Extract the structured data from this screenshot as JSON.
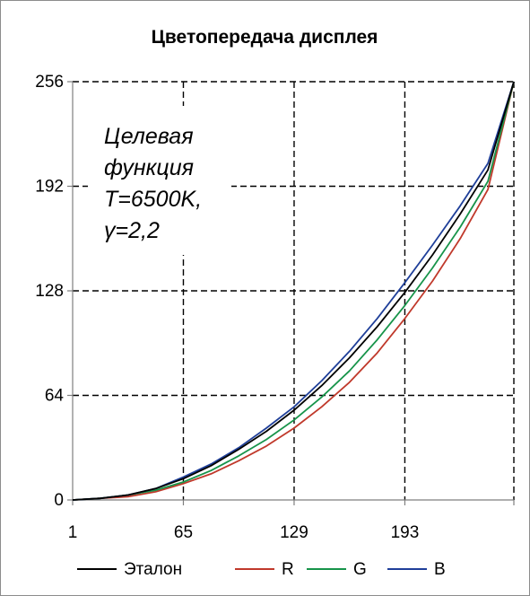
{
  "chart_data": {
    "type": "line",
    "title": "Цветопередача дисплея",
    "xlabel": "",
    "ylabel": "",
    "xlim": [
      1,
      256
    ],
    "ylim": [
      0,
      256
    ],
    "x_ticks": [
      1,
      65,
      129,
      193
    ],
    "y_ticks": [
      0,
      64,
      128,
      192,
      256
    ],
    "grid": "dashed",
    "legend_position": "bottom",
    "annotation": [
      "Целевая",
      "функция",
      "T=6500K,",
      "γ=2,2"
    ],
    "series": [
      {
        "name": "Эталон",
        "color": "#000000",
        "x": [
          1,
          17,
          33,
          49,
          65,
          81,
          97,
          113,
          129,
          145,
          161,
          177,
          193,
          209,
          225,
          241,
          256
        ],
        "y": [
          0,
          1,
          3,
          7,
          13,
          21,
          31,
          42,
          55,
          70,
          87,
          106,
          127,
          150,
          175,
          202,
          256
        ]
      },
      {
        "name": "R",
        "color": "#c0392b",
        "x": [
          1,
          17,
          33,
          49,
          65,
          81,
          97,
          113,
          129,
          145,
          161,
          177,
          193,
          209,
          225,
          241,
          256
        ],
        "y": [
          0,
          1,
          2,
          5,
          10,
          16,
          24,
          33,
          44,
          57,
          72,
          90,
          111,
          134,
          160,
          190,
          256
        ]
      },
      {
        "name": "G",
        "color": "#17944a",
        "x": [
          1,
          17,
          33,
          49,
          65,
          81,
          97,
          113,
          129,
          145,
          161,
          177,
          193,
          209,
          225,
          241,
          256
        ],
        "y": [
          0,
          1,
          3,
          6,
          11,
          18,
          27,
          37,
          49,
          63,
          79,
          98,
          119,
          142,
          167,
          195,
          256
        ]
      },
      {
        "name": "B",
        "color": "#1f3f99",
        "x": [
          1,
          17,
          33,
          49,
          65,
          81,
          97,
          113,
          129,
          145,
          161,
          177,
          193,
          209,
          225,
          241,
          256
        ],
        "y": [
          0,
          1,
          3,
          7,
          14,
          22,
          32,
          44,
          57,
          73,
          91,
          111,
          133,
          156,
          180,
          206,
          256
        ]
      }
    ]
  }
}
